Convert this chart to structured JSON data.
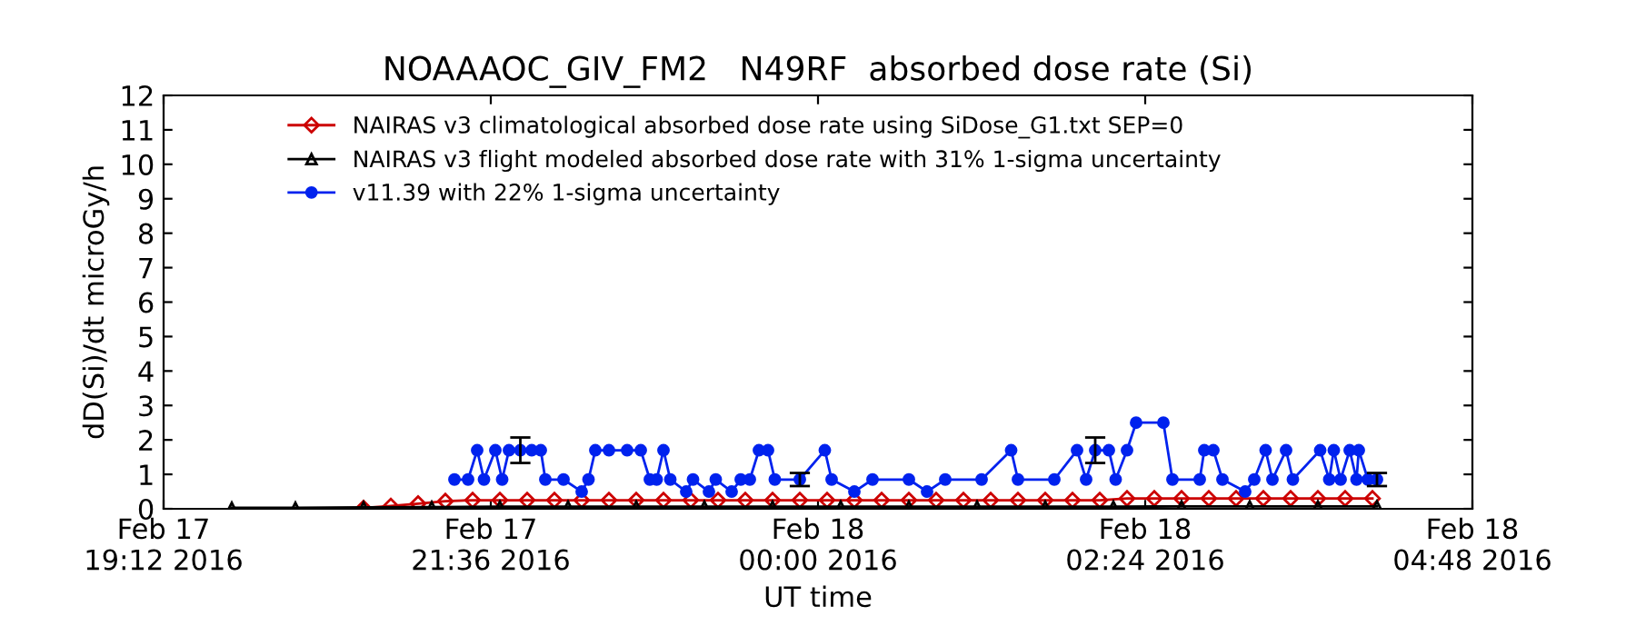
{
  "chart_data": {
    "type": "line",
    "title": "NOAAAOC_GIV_FM2   N49RF  absorbed dose rate (Si)",
    "xlabel": "UT time",
    "ylabel": "dD(Si)/dt microGy/h",
    "xlim": [
      "2016-02-17T19:12",
      "2016-02-18T04:48"
    ],
    "xticks": [
      {
        "value": "2016-02-17T19:12",
        "label": "Feb 17\n19:12 2016"
      },
      {
        "value": "2016-02-17T21:36",
        "label": "Feb 17\n21:36 2016"
      },
      {
        "value": "2016-02-18T00:00",
        "label": "Feb 18\n00:00 2016"
      },
      {
        "value": "2016-02-18T02:24",
        "label": "Feb 18\n02:24 2016"
      },
      {
        "value": "2016-02-18T04:48",
        "label": "Feb 18\n04:48 2016"
      }
    ],
    "ylim": [
      0,
      12
    ],
    "yticks": [
      0,
      1,
      2,
      3,
      4,
      5,
      6,
      7,
      8,
      9,
      10,
      11,
      12
    ],
    "grid": false,
    "legend": "top left",
    "series": [
      {
        "name": "NAIRAS v3 climatological absorbed dose rate using SiDose_G1.txt SEP=0",
        "color": "#cc0000",
        "marker": "diamond",
        "x": [
          "2016-02-17T20:40",
          "2016-02-17T20:52",
          "2016-02-17T21:04",
          "2016-02-17T21:16",
          "2016-02-17T21:28",
          "2016-02-17T21:40",
          "2016-02-17T21:52",
          "2016-02-17T22:04",
          "2016-02-17T22:16",
          "2016-02-17T22:28",
          "2016-02-17T22:40",
          "2016-02-17T22:52",
          "2016-02-17T23:04",
          "2016-02-17T23:16",
          "2016-02-17T23:28",
          "2016-02-17T23:40",
          "2016-02-17T23:52",
          "2016-02-18T00:04",
          "2016-02-18T00:16",
          "2016-02-18T00:28",
          "2016-02-18T00:40",
          "2016-02-18T00:52",
          "2016-02-18T01:04",
          "2016-02-18T01:16",
          "2016-02-18T01:28",
          "2016-02-18T01:40",
          "2016-02-18T01:52",
          "2016-02-18T02:04",
          "2016-02-18T02:16",
          "2016-02-18T02:28",
          "2016-02-18T02:40",
          "2016-02-18T02:52",
          "2016-02-18T03:04",
          "2016-02-18T03:16",
          "2016-02-18T03:28",
          "2016-02-18T03:40",
          "2016-02-18T03:52",
          "2016-02-18T04:04"
        ],
        "values": [
          0.02,
          0.08,
          0.15,
          0.22,
          0.25,
          0.25,
          0.25,
          0.25,
          0.25,
          0.25,
          0.25,
          0.25,
          0.25,
          0.25,
          0.25,
          0.25,
          0.25,
          0.25,
          0.25,
          0.25,
          0.25,
          0.25,
          0.25,
          0.25,
          0.25,
          0.25,
          0.25,
          0.25,
          0.3,
          0.3,
          0.3,
          0.3,
          0.3,
          0.3,
          0.3,
          0.3,
          0.3,
          0.3
        ]
      },
      {
        "name": "NAIRAS v3 flight modeled absorbed dose rate with 31% 1-sigma uncertainty",
        "color": "#000000",
        "marker": "triangle",
        "x": [
          "2016-02-17T19:42",
          "2016-02-17T20:10",
          "2016-02-17T20:40",
          "2016-02-17T21:10",
          "2016-02-17T21:40",
          "2016-02-17T22:10",
          "2016-02-17T22:40",
          "2016-02-17T23:10",
          "2016-02-17T23:40",
          "2016-02-18T00:10",
          "2016-02-18T00:40",
          "2016-02-18T01:10",
          "2016-02-18T01:40",
          "2016-02-18T02:10",
          "2016-02-18T02:40",
          "2016-02-18T03:10",
          "2016-02-18T03:40",
          "2016-02-18T04:06"
        ],
        "values": [
          0.03,
          0.03,
          0.04,
          0.05,
          0.06,
          0.06,
          0.06,
          0.06,
          0.06,
          0.06,
          0.06,
          0.06,
          0.06,
          0.06,
          0.07,
          0.07,
          0.07,
          0.07
        ]
      },
      {
        "name": "v11.39 with 22% 1-sigma uncertainty",
        "color": "#0022ee",
        "marker": "circle",
        "x": [
          "2016-02-17T21:20",
          "2016-02-17T21:26",
          "2016-02-17T21:30",
          "2016-02-17T21:33",
          "2016-02-17T21:38",
          "2016-02-17T21:41",
          "2016-02-17T21:44",
          "2016-02-17T21:49",
          "2016-02-17T21:54",
          "2016-02-17T21:58",
          "2016-02-17T22:00",
          "2016-02-17T22:08",
          "2016-02-17T22:16",
          "2016-02-17T22:19",
          "2016-02-17T22:22",
          "2016-02-17T22:28",
          "2016-02-17T22:36",
          "2016-02-17T22:42",
          "2016-02-17T22:46",
          "2016-02-17T22:49",
          "2016-02-17T22:52",
          "2016-02-17T22:55",
          "2016-02-17T23:02",
          "2016-02-17T23:05",
          "2016-02-17T23:12",
          "2016-02-17T23:15",
          "2016-02-17T23:22",
          "2016-02-17T23:26",
          "2016-02-17T23:30",
          "2016-02-17T23:34",
          "2016-02-17T23:38",
          "2016-02-17T23:41",
          "2016-02-17T23:52",
          "2016-02-18T00:03",
          "2016-02-18T00:06",
          "2016-02-18T00:16",
          "2016-02-18T00:24",
          "2016-02-18T00:40",
          "2016-02-18T00:48",
          "2016-02-18T00:56",
          "2016-02-18T01:12",
          "2016-02-18T01:25",
          "2016-02-18T01:28",
          "2016-02-18T01:44",
          "2016-02-18T01:54",
          "2016-02-18T01:58",
          "2016-02-18T02:02",
          "2016-02-18T02:08",
          "2016-02-18T02:11",
          "2016-02-18T02:16",
          "2016-02-18T02:20",
          "2016-02-18T02:32",
          "2016-02-18T02:36",
          "2016-02-18T02:48",
          "2016-02-18T02:50",
          "2016-02-18T02:54",
          "2016-02-18T02:58",
          "2016-02-18T03:08",
          "2016-02-18T03:12",
          "2016-02-18T03:17",
          "2016-02-18T03:20",
          "2016-02-18T03:26",
          "2016-02-18T03:29",
          "2016-02-18T03:41",
          "2016-02-18T03:45",
          "2016-02-18T03:47",
          "2016-02-18T03:50",
          "2016-02-18T03:54",
          "2016-02-18T03:57",
          "2016-02-18T03:58",
          "2016-02-18T04:02",
          "2016-02-18T04:06"
        ],
        "values": [
          0.85,
          0.85,
          1.7,
          0.85,
          1.7,
          0.85,
          1.7,
          1.7,
          1.7,
          1.7,
          0.85,
          0.85,
          0.5,
          0.85,
          1.7,
          1.7,
          1.7,
          1.7,
          0.85,
          0.85,
          1.7,
          0.85,
          0.5,
          0.85,
          0.5,
          0.85,
          0.5,
          0.85,
          0.85,
          1.7,
          1.7,
          0.85,
          0.85,
          1.7,
          0.85,
          0.5,
          0.85,
          0.85,
          0.5,
          0.85,
          0.85,
          1.7,
          0.85,
          0.85,
          1.7,
          0.85,
          1.7,
          1.7,
          0.85,
          1.7,
          2.5,
          2.5,
          0.85,
          0.85,
          1.7,
          1.7,
          0.85,
          0.5,
          0.85,
          1.7,
          0.85,
          1.7,
          0.85,
          1.7,
          0.85,
          1.7,
          0.85,
          1.7,
          0.85,
          1.7,
          0.85,
          0.85
        ],
        "errors": [
          null,
          null,
          null,
          null,
          null,
          null,
          null,
          0.37,
          null,
          null,
          null,
          null,
          null,
          null,
          null,
          null,
          null,
          null,
          null,
          null,
          null,
          null,
          null,
          null,
          null,
          null,
          null,
          null,
          null,
          null,
          null,
          null,
          0.19,
          null,
          null,
          null,
          null,
          null,
          null,
          null,
          null,
          null,
          null,
          null,
          null,
          null,
          0.37,
          null,
          null,
          null,
          null,
          null,
          null,
          null,
          null,
          null,
          null,
          null,
          null,
          null,
          null,
          null,
          null,
          null,
          null,
          null,
          null,
          null,
          null,
          null,
          null,
          0.19
        ]
      }
    ]
  }
}
